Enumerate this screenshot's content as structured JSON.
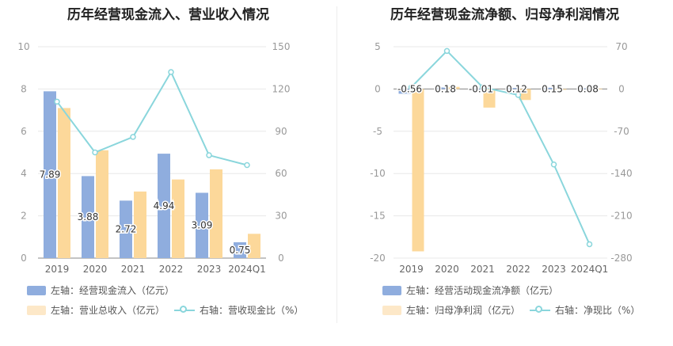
{
  "colors": {
    "bar1": "#8fadde",
    "bar2": "#fcd89a",
    "line": "#8ad6dc",
    "grid": "#e8e8e8",
    "axis": "#999999"
  },
  "chart_data": [
    {
      "type": "bar+line",
      "title": "历年经营现金流入、营业收入情况",
      "categories": [
        "2019",
        "2020",
        "2021",
        "2022",
        "2023",
        "2024Q1"
      ],
      "left_axis": {
        "ylim": [
          0,
          10
        ],
        "ticks": [
          "0",
          "2",
          "4",
          "6",
          "8",
          "10"
        ]
      },
      "right_axis": {
        "ylim": [
          0,
          150
        ],
        "ticks": [
          "0",
          "30",
          "60",
          "90",
          "120",
          "150"
        ]
      },
      "series": [
        {
          "name": "左轴：经营现金流入（亿元）",
          "axis": "left",
          "kind": "bar",
          "values": [
            7.89,
            3.88,
            2.72,
            4.94,
            3.09,
            0.75
          ],
          "labels": [
            "7.89",
            "3.88",
            "2.72",
            "4.94",
            "3.09",
            "0.75"
          ]
        },
        {
          "name": "左轴：营业总收入（亿元）",
          "axis": "left",
          "kind": "bar",
          "values": [
            7.1,
            5.1,
            3.15,
            3.72,
            4.2,
            1.15
          ]
        },
        {
          "name": "右轴：营收现金比（%）",
          "axis": "right",
          "kind": "line",
          "values": [
            111,
            75,
            86,
            132,
            73,
            66
          ]
        }
      ]
    },
    {
      "type": "bar+line",
      "title": "历年经营现金流净额、归母净利润情况",
      "categories": [
        "2019",
        "2020",
        "2021",
        "2022",
        "2023",
        "2024Q1"
      ],
      "left_axis": {
        "ylim": [
          -20,
          5
        ],
        "ticks": [
          "-20",
          "-15",
          "-10",
          "-5",
          "0",
          "5"
        ]
      },
      "right_axis": {
        "ylim": [
          -280,
          70
        ],
        "ticks": [
          "-280",
          "-210",
          "-140",
          "-70",
          "0",
          "70"
        ]
      },
      "series": [
        {
          "name": "左轴：经营活动现金流净额（亿元）",
          "axis": "left",
          "kind": "bar",
          "values": [
            -0.56,
            0.18,
            -0.01,
            0.12,
            0.15,
            0.08
          ],
          "labels": [
            "-0.56",
            "0.18",
            "-0.01",
            "0.12",
            "0.15",
            "0.08"
          ]
        },
        {
          "name": "左轴：归母净利润（亿元）",
          "axis": "left",
          "kind": "bar",
          "values": [
            -19.2,
            0.25,
            -2.2,
            -1.3,
            -0.1,
            0.05
          ]
        },
        {
          "name": "右轴：净现比（%）",
          "axis": "right",
          "kind": "line",
          "values": [
            3,
            63,
            3,
            -10,
            -125,
            -257
          ]
        }
      ]
    }
  ]
}
